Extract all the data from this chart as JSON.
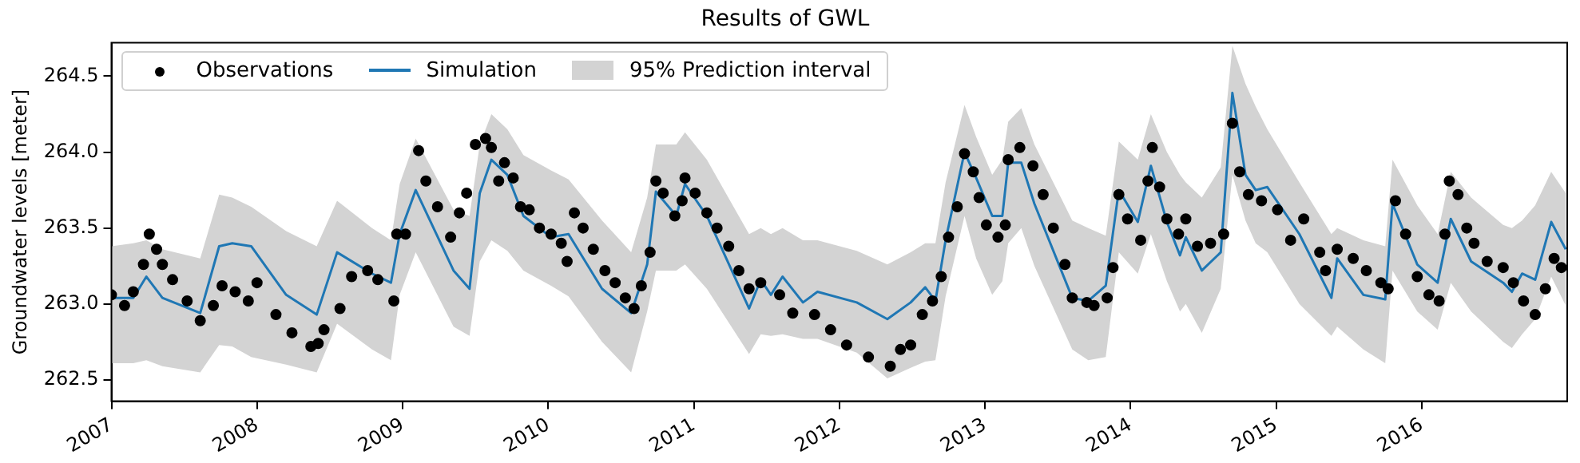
{
  "chart_data": {
    "type": "scatter",
    "title": "Results of GWL",
    "ylabel": "Groundwater levels [meter]",
    "xlim": [
      2007,
      2017
    ],
    "xticks": [
      2007,
      2008,
      2009,
      2010,
      2011,
      2012,
      2013,
      2014,
      2015,
      2016
    ],
    "ylim": [
      262.36,
      264.72
    ],
    "yticks": [
      262.5,
      {
        "value": 263,
        "label": "263.0"
      },
      263.5,
      {
        "value": 264,
        "label": "264.0"
      },
      264.5
    ],
    "grid": false,
    "legend": "top left",
    "series": [
      {
        "name": "Observations",
        "type": "scatter",
        "marker": "circle",
        "color": "#000000",
        "x": [
          2007.0,
          2007.09,
          2007.15,
          2007.22,
          2007.26,
          2007.31,
          2007.35,
          2007.42,
          2007.52,
          2007.61,
          2007.7,
          2007.76,
          2007.85,
          2007.94,
          2008.0,
          2008.13,
          2008.24,
          2008.37,
          2008.42,
          2008.46,
          2008.57,
          2008.65,
          2008.76,
          2008.83,
          2008.94,
          2008.96,
          2009.02,
          2009.11,
          2009.16,
          2009.24,
          2009.33,
          2009.39,
          2009.44,
          2009.5,
          2009.57,
          2009.61,
          2009.66,
          2009.7,
          2009.76,
          2009.81,
          2009.87,
          2009.94,
          2010.02,
          2010.09,
          2010.13,
          2010.18,
          2010.24,
          2010.31,
          2010.39,
          2010.46,
          2010.53,
          2010.59,
          2010.64,
          2010.7,
          2010.74,
          2010.79,
          2010.87,
          2010.92,
          2010.94,
          2011.01,
          2011.09,
          2011.16,
          2011.24,
          2011.31,
          2011.38,
          2011.46,
          2011.59,
          2011.68,
          2011.83,
          2011.94,
          2012.05,
          2012.2,
          2012.35,
          2012.42,
          2012.49,
          2012.57,
          2012.64,
          2012.7,
          2012.75,
          2012.81,
          2012.86,
          2012.92,
          2012.96,
          2013.01,
          2013.09,
          2013.14,
          2013.16,
          2013.24,
          2013.33,
          2013.4,
          2013.47,
          2013.55,
          2013.6,
          2013.7,
          2013.75,
          2013.84,
          2013.88,
          2013.92,
          2013.98,
          2014.07,
          2014.12,
          2014.15,
          2014.2,
          2014.25,
          2014.33,
          2014.38,
          2014.46,
          2014.55,
          2014.64,
          2014.7,
          2014.75,
          2014.81,
          2014.9,
          2015.01,
          2015.1,
          2015.19,
          2015.3,
          2015.34,
          2015.42,
          2015.53,
          2015.62,
          2015.72,
          2015.77,
          2015.82,
          2015.89,
          2015.97,
          2016.05,
          2016.12,
          2016.16,
          2016.19,
          2016.25,
          2016.31,
          2016.36,
          2016.45,
          2016.56,
          2016.63,
          2016.7,
          2016.78,
          2016.85,
          2016.91,
          2016.96
        ],
        "values": [
          263.06,
          262.99,
          263.08,
          263.26,
          263.46,
          263.36,
          263.26,
          263.16,
          263.02,
          262.89,
          262.99,
          263.12,
          263.08,
          263.02,
          263.14,
          262.93,
          262.81,
          262.72,
          262.74,
          262.83,
          262.97,
          263.18,
          263.22,
          263.16,
          263.02,
          263.46,
          263.46,
          264.01,
          263.81,
          263.64,
          263.44,
          263.6,
          263.73,
          264.05,
          264.09,
          264.03,
          263.81,
          263.93,
          263.83,
          263.64,
          263.62,
          263.5,
          263.46,
          263.4,
          263.28,
          263.6,
          263.5,
          263.36,
          263.22,
          263.14,
          263.04,
          262.97,
          263.12,
          263.34,
          263.81,
          263.73,
          263.58,
          263.68,
          263.83,
          263.73,
          263.6,
          263.5,
          263.38,
          263.22,
          263.1,
          263.14,
          263.06,
          262.94,
          262.93,
          262.83,
          262.73,
          262.65,
          262.59,
          262.7,
          262.73,
          262.93,
          263.02,
          263.18,
          263.44,
          263.64,
          263.99,
          263.87,
          263.7,
          263.52,
          263.44,
          263.52,
          263.95,
          264.03,
          263.91,
          263.72,
          263.5,
          263.26,
          263.04,
          263.01,
          262.99,
          263.04,
          263.24,
          263.72,
          263.56,
          263.42,
          263.81,
          264.03,
          263.77,
          263.56,
          263.46,
          263.56,
          263.38,
          263.4,
          263.46,
          264.19,
          263.87,
          263.72,
          263.68,
          263.62,
          263.42,
          263.56,
          263.34,
          263.22,
          263.36,
          263.3,
          263.22,
          263.14,
          263.1,
          263.68,
          263.46,
          263.18,
          263.06,
          263.02,
          263.46,
          263.81,
          263.72,
          263.5,
          263.4,
          263.28,
          263.24,
          263.14,
          263.02,
          262.93,
          263.1,
          263.3,
          263.24
        ]
      },
      {
        "name": "Simulation",
        "type": "line",
        "marker": "none",
        "line_style": "solid",
        "color": "#1f77b4",
        "x": [
          2007.0,
          2007.15,
          2007.24,
          2007.35,
          2007.61,
          2007.74,
          2007.83,
          2007.96,
          2008.2,
          2008.41,
          2008.55,
          2008.79,
          2008.92,
          2008.98,
          2009.09,
          2009.35,
          2009.46,
          2009.53,
          2009.61,
          2009.72,
          2009.83,
          2010.02,
          2010.14,
          2010.37,
          2010.57,
          2010.68,
          2010.74,
          2010.88,
          2010.94,
          2011.09,
          2011.38,
          2011.46,
          2011.53,
          2011.61,
          2011.75,
          2011.85,
          2012.12,
          2012.33,
          2012.49,
          2012.59,
          2012.66,
          2012.73,
          2012.86,
          2012.94,
          2013.05,
          2013.12,
          2013.16,
          2013.25,
          2013.34,
          2013.6,
          2013.71,
          2013.83,
          2013.92,
          2014.05,
          2014.14,
          2014.25,
          2014.34,
          2014.38,
          2014.49,
          2014.62,
          2014.7,
          2014.79,
          2014.86,
          2014.94,
          2015.16,
          2015.38,
          2015.42,
          2015.6,
          2015.75,
          2015.8,
          2015.97,
          2016.11,
          2016.2,
          2016.34,
          2016.56,
          2016.62,
          2016.69,
          2016.78,
          2016.89,
          2016.99
        ],
        "values": [
          263.04,
          263.04,
          263.18,
          263.04,
          262.94,
          263.38,
          263.4,
          263.38,
          263.06,
          262.93,
          263.34,
          263.2,
          263.14,
          263.46,
          263.75,
          263.22,
          263.1,
          263.73,
          263.95,
          263.85,
          263.58,
          263.44,
          263.46,
          263.1,
          262.94,
          263.26,
          263.74,
          263.58,
          263.79,
          263.58,
          262.97,
          263.16,
          263.06,
          263.18,
          263.01,
          263.08,
          263.01,
          262.9,
          263.01,
          263.11,
          263.02,
          263.42,
          264.0,
          263.83,
          263.58,
          263.58,
          263.93,
          263.93,
          263.66,
          263.04,
          263.02,
          263.12,
          263.75,
          263.54,
          263.91,
          263.54,
          263.32,
          263.44,
          263.22,
          263.34,
          264.39,
          263.85,
          263.75,
          263.77,
          263.46,
          263.04,
          263.3,
          263.06,
          263.03,
          263.66,
          263.26,
          263.14,
          263.56,
          263.28,
          263.14,
          263.08,
          263.2,
          263.16,
          263.54,
          263.36
        ],
        "upper": [
          263.38,
          263.4,
          263.42,
          263.36,
          263.3,
          263.72,
          263.7,
          263.64,
          263.48,
          263.38,
          263.68,
          263.5,
          263.42,
          263.79,
          264.09,
          263.62,
          263.58,
          264.05,
          264.25,
          264.15,
          263.98,
          263.88,
          263.82,
          263.55,
          263.34,
          263.7,
          264.05,
          264.05,
          264.13,
          263.95,
          263.46,
          263.5,
          263.46,
          263.5,
          263.42,
          263.42,
          263.35,
          263.26,
          263.34,
          263.4,
          263.4,
          263.8,
          264.31,
          264.1,
          263.85,
          263.95,
          264.2,
          264.29,
          264.05,
          263.55,
          263.5,
          263.45,
          264.07,
          263.95,
          264.25,
          264.0,
          263.85,
          263.8,
          263.7,
          263.9,
          264.7,
          264.45,
          264.3,
          264.15,
          263.8,
          263.46,
          263.5,
          263.42,
          263.38,
          263.95,
          263.65,
          263.46,
          263.87,
          263.7,
          263.52,
          263.5,
          263.55,
          263.65,
          263.87,
          263.73
        ],
        "lower": [
          262.61,
          262.61,
          262.63,
          262.59,
          262.55,
          262.73,
          262.72,
          262.65,
          262.6,
          262.55,
          262.87,
          262.7,
          262.63,
          263.06,
          263.34,
          262.85,
          262.79,
          263.28,
          263.42,
          263.35,
          263.22,
          263.12,
          263.05,
          262.75,
          262.55,
          262.95,
          263.22,
          263.22,
          263.26,
          263.1,
          262.67,
          262.8,
          262.79,
          262.8,
          262.77,
          262.77,
          262.68,
          262.51,
          262.58,
          262.62,
          262.63,
          263.05,
          263.58,
          263.3,
          263.06,
          263.15,
          263.4,
          263.5,
          263.25,
          262.7,
          262.63,
          262.65,
          263.34,
          263.2,
          263.46,
          263.15,
          262.95,
          263.0,
          262.81,
          263.1,
          263.85,
          263.55,
          263.4,
          263.34,
          263.0,
          262.79,
          262.85,
          262.7,
          262.61,
          263.22,
          262.95,
          262.83,
          263.14,
          262.95,
          262.75,
          262.71,
          262.8,
          262.9,
          263.18,
          262.99
        ]
      },
      {
        "name": "95% Prediction interval",
        "type": "area",
        "color": "#d3d3d3"
      }
    ]
  }
}
